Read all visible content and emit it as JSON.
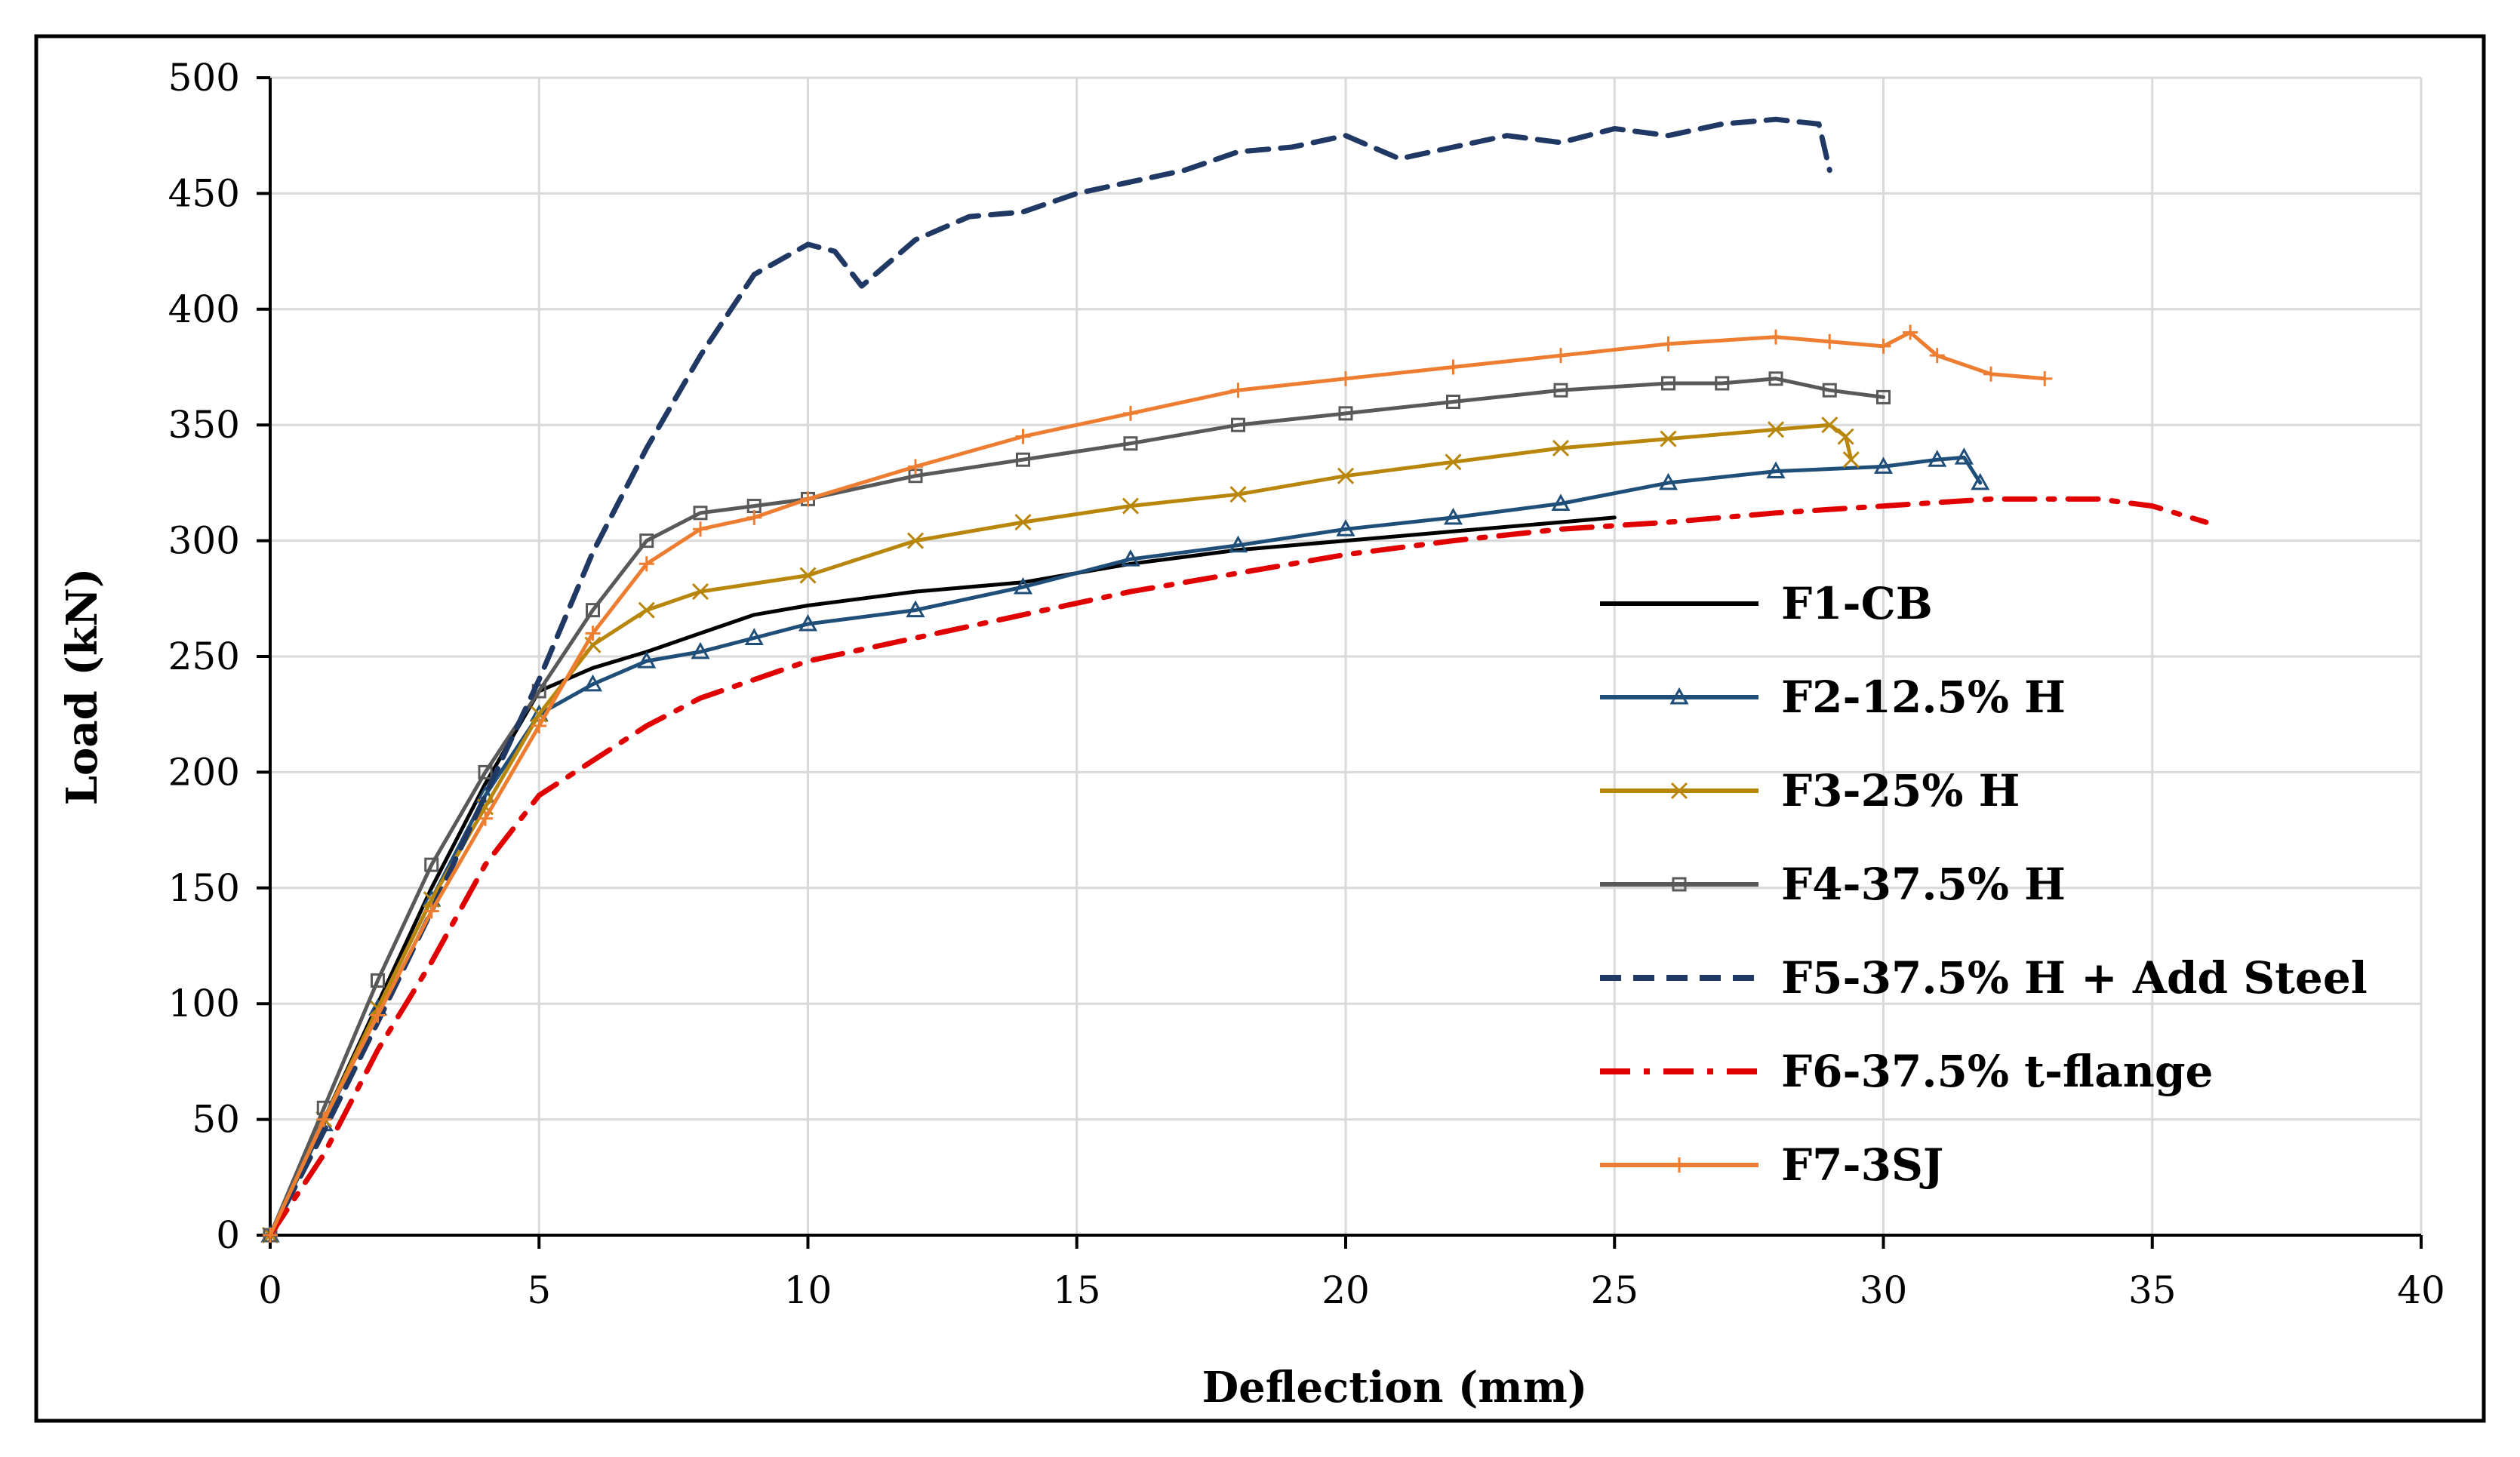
{
  "chart_data": {
    "type": "line",
    "title": "",
    "xlabel": "Deflection (mm)",
    "ylabel": "Load (kN)",
    "xlim": [
      0,
      40
    ],
    "ylim": [
      0,
      500
    ],
    "xticks": [
      0,
      5,
      10,
      15,
      20,
      25,
      30,
      35,
      40
    ],
    "yticks": [
      0,
      50,
      100,
      150,
      200,
      250,
      300,
      350,
      400,
      450,
      500
    ],
    "grid": true,
    "legend_position": "bottom-right",
    "series": [
      {
        "name": "F1-CB",
        "color": "#000000",
        "style": "solid",
        "marker": "none",
        "x": [
          0,
          1,
          2,
          3,
          4,
          5,
          6,
          7,
          8,
          9,
          10,
          11,
          12,
          14,
          16,
          18,
          20,
          22,
          24,
          25
        ],
        "y": [
          0,
          50,
          100,
          150,
          195,
          235,
          245,
          252,
          260,
          268,
          272,
          275,
          278,
          282,
          290,
          296,
          300,
          304,
          308,
          310
        ]
      },
      {
        "name": "F2-12.5% H",
        "color": "#1F4E79",
        "style": "solid",
        "marker": "triangle",
        "x": [
          0,
          1,
          2,
          3,
          4,
          5,
          6,
          7,
          8,
          9,
          10,
          12,
          14,
          16,
          18,
          20,
          22,
          24,
          26,
          28,
          30,
          31,
          31.5,
          31.8
        ],
        "y": [
          0,
          48,
          98,
          145,
          190,
          225,
          238,
          248,
          252,
          258,
          264,
          270,
          280,
          292,
          298,
          305,
          310,
          316,
          325,
          330,
          332,
          335,
          336,
          325
        ]
      },
      {
        "name": "F3-25% H",
        "color": "#B8860B",
        "style": "solid",
        "marker": "x",
        "x": [
          0,
          1,
          2,
          3,
          4,
          5,
          6,
          7,
          8,
          10,
          12,
          14,
          16,
          18,
          20,
          22,
          24,
          26,
          28,
          29,
          29.3,
          29.4
        ],
        "y": [
          0,
          50,
          98,
          145,
          185,
          225,
          255,
          270,
          278,
          285,
          300,
          308,
          315,
          320,
          328,
          334,
          340,
          344,
          348,
          350,
          345,
          335
        ]
      },
      {
        "name": "F4-37.5% H",
        "color": "#595959",
        "style": "solid",
        "marker": "square",
        "x": [
          0,
          1,
          2,
          3,
          4,
          5,
          6,
          7,
          8,
          9,
          10,
          12,
          14,
          16,
          18,
          20,
          22,
          24,
          26,
          27,
          28,
          29,
          30
        ],
        "y": [
          0,
          55,
          110,
          160,
          200,
          235,
          270,
          300,
          312,
          315,
          318,
          328,
          335,
          342,
          350,
          355,
          360,
          365,
          368,
          368,
          370,
          365,
          362
        ]
      },
      {
        "name": "F5-37.5% H + Add Steel",
        "color": "#203864",
        "style": "dashed",
        "marker": "none",
        "x": [
          0,
          1,
          2,
          3,
          4,
          5,
          6,
          7,
          8,
          9,
          10,
          10.5,
          11,
          12,
          13,
          14,
          15,
          16,
          17,
          18,
          19,
          20,
          21,
          22,
          23,
          24,
          25,
          26,
          27,
          28,
          28.8,
          29
        ],
        "y": [
          0,
          45,
          92,
          140,
          190,
          240,
          295,
          340,
          380,
          415,
          428,
          425,
          410,
          430,
          440,
          442,
          450,
          455,
          460,
          468,
          470,
          475,
          465,
          470,
          475,
          472,
          478,
          475,
          480,
          482,
          480,
          460
        ]
      },
      {
        "name": "F6-37.5% t-flange",
        "color": "#E00000",
        "style": "dashdot",
        "marker": "none",
        "x": [
          0,
          1,
          2,
          3,
          4,
          5,
          6,
          7,
          8,
          9,
          10,
          12,
          14,
          16,
          18,
          20,
          22,
          24,
          26,
          28,
          30,
          32,
          34,
          35,
          36
        ],
        "y": [
          0,
          35,
          80,
          118,
          160,
          190,
          205,
          220,
          232,
          240,
          248,
          258,
          268,
          278,
          286,
          294,
          300,
          305,
          308,
          312,
          315,
          318,
          318,
          315,
          308
        ]
      },
      {
        "name": "F7-3SJ",
        "color": "#ED7D31",
        "style": "solid",
        "marker": "plus",
        "x": [
          0,
          1,
          2,
          3,
          4,
          5,
          6,
          7,
          8,
          9,
          10,
          12,
          14,
          16,
          18,
          20,
          22,
          24,
          26,
          28,
          29,
          30,
          30.5,
          31,
          32,
          33
        ],
        "y": [
          0,
          50,
          95,
          140,
          180,
          220,
          260,
          290,
          305,
          310,
          318,
          332,
          345,
          355,
          365,
          370,
          375,
          380,
          385,
          388,
          386,
          384,
          390,
          380,
          372,
          370
        ]
      }
    ]
  }
}
